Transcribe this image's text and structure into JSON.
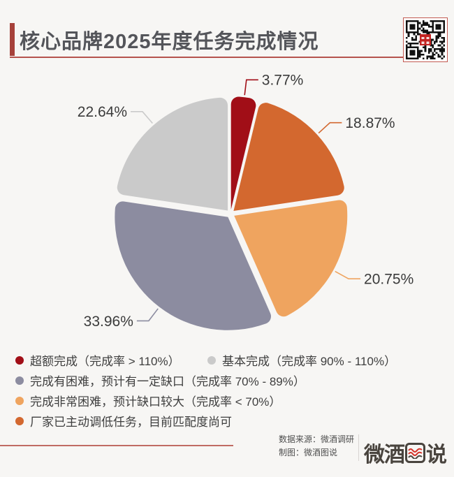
{
  "page": {
    "background": "#F7F6F4"
  },
  "header": {
    "title": "核心品牌2025年度任务完成情况",
    "accent_color": "#A6413A",
    "underline_color": "#B5534D"
  },
  "chart_data": {
    "type": "pie",
    "title": "核心品牌2025年度任务完成情况",
    "unit": "%",
    "start_angle_deg": 0,
    "direction": "clockwise",
    "legend_position": "bottom",
    "label_color": "#3B3B3B",
    "slices": [
      {
        "label": "超额完成（完成率 > 110%）",
        "value": 3.77,
        "display": "3.77%",
        "color": "#A10E17"
      },
      {
        "label": "厂家已主动调低任务，目前匹配度尚可",
        "value": 18.87,
        "display": "18.87%",
        "color": "#D3682F"
      },
      {
        "label": "完成非常困难，预计缺口较大（完成率 < 70%）",
        "value": 20.75,
        "display": "20.75%",
        "color": "#EFA45F"
      },
      {
        "label": "完成有困难，预计有一定缺口（完成率 70% - 89%）",
        "value": 33.96,
        "display": "33.96%",
        "color": "#8C8CA0"
      },
      {
        "label": "基本完成（完成率 90% - 110%）",
        "value": 22.64,
        "display": "22.64%",
        "color": "#CACACA"
      }
    ]
  },
  "legend": {
    "items": [
      {
        "label": "超额完成（完成率 > 110%）",
        "color": "#A10E17"
      },
      {
        "label": "基本完成（完成率 90% - 110%）",
        "color": "#CACACA"
      },
      {
        "label": "完成有困难，预计有一定缺口（完成率 70% - 89%）",
        "color": "#8C8CA0"
      },
      {
        "label": "完成非常困难，预计缺口较大（完成率 < 70%）",
        "color": "#EFA45F"
      },
      {
        "label": "厂家已主动调低任务，目前匹配度尚可",
        "color": "#D3682F"
      }
    ]
  },
  "footer": {
    "source": "数据来源：微酒调研",
    "credit": "制图：微酒图说",
    "logo_left": "微酒",
    "logo_right": "说",
    "logo_icon": "wave-chart-icon",
    "line_color": "#C06B63"
  }
}
